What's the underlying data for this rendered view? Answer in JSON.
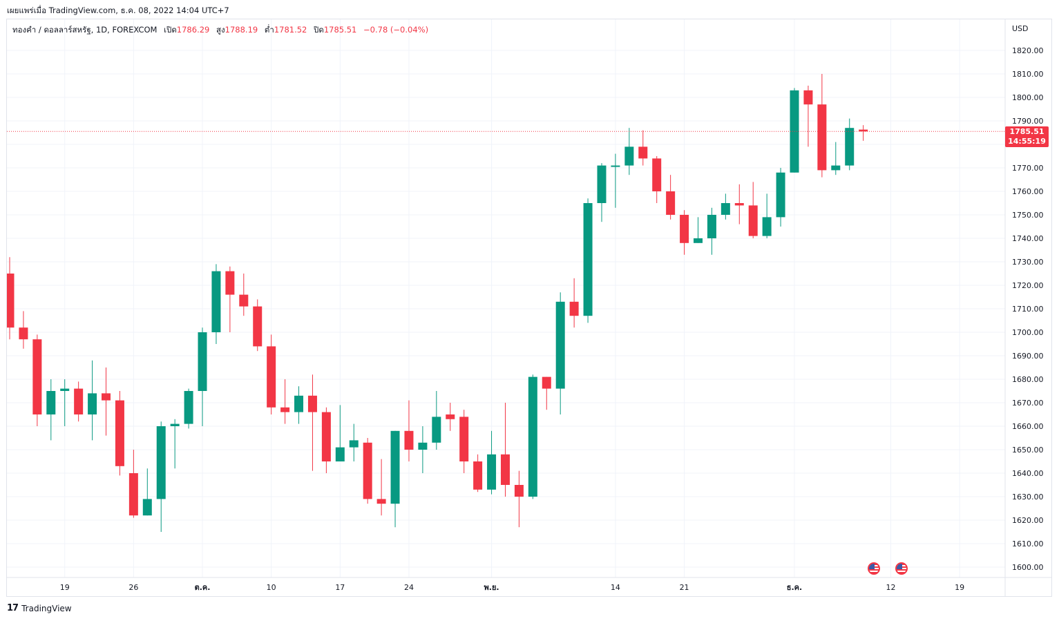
{
  "header": {
    "published": "เผยแพร่เมื่อ TradingView.com, ธ.ค. 08, 2022 14:04 UTC+7"
  },
  "legend": {
    "symbol": "ทองคำ / ดอลลาร์สหรัฐ, 1D, FOREXCOM",
    "open_label": "เปิด",
    "open": "1786.29",
    "high_label": "สูง",
    "high": "1788.19",
    "low_label": "ต่ำ",
    "low": "1781.52",
    "close_label": "ปิด",
    "close": "1785.51",
    "change": "−0.78 (−0.04%)"
  },
  "price_tag": {
    "price": "1785.51",
    "countdown": "14:55:19"
  },
  "footer": {
    "brand": "TradingView",
    "logo": "17"
  },
  "colors": {
    "up": "#089981",
    "down": "#f23645",
    "grid": "#f0f3fa",
    "axis_text": "#131722"
  },
  "icons": [
    "us-flag-event-icon",
    "us-flag-event-icon"
  ],
  "chart_data": {
    "type": "candlestick",
    "currency": "USD",
    "y_ticks": [
      1600,
      1610,
      1620,
      1630,
      1640,
      1650,
      1660,
      1670,
      1680,
      1690,
      1700,
      1710,
      1720,
      1730,
      1740,
      1750,
      1760,
      1770,
      1780,
      1790,
      1800,
      1810,
      1820
    ],
    "y_tick_labels": [
      "1600.00",
      "1610.00",
      "1620.00",
      "1630.00",
      "1640.00",
      "1650.00",
      "1660.00",
      "1670.00",
      "1680.00",
      "1690.00",
      "1700.00",
      "1710.00",
      "1720.00",
      "1730.00",
      "1740.00",
      "1750.00",
      "1760.00",
      "1770.00",
      "1780.00",
      "1790.00",
      "1800.00",
      "1810.00",
      "1820.00"
    ],
    "x_tick_labels": [
      "19",
      "26",
      "ต.ค.",
      "10",
      "17",
      "24",
      "พ.ย.",
      "14",
      "21",
      "ธ.ค.",
      "12",
      "19"
    ],
    "x_tick_dates": [
      "2022-09-19",
      "2022-09-26",
      "2022-10-03",
      "2022-10-10",
      "2022-10-17",
      "2022-10-24",
      "2022-11-01",
      "2022-11-14",
      "2022-11-21",
      "2022-12-01",
      "2022-12-12",
      "2022-12-19"
    ],
    "last_price": 1785.51,
    "candles": [
      {
        "date": "2022-09-13",
        "o": 1725,
        "h": 1732,
        "l": 1697,
        "c": 1702
      },
      {
        "date": "2022-09-14",
        "o": 1702,
        "h": 1709,
        "l": 1693,
        "c": 1697
      },
      {
        "date": "2022-09-15",
        "o": 1697,
        "h": 1699,
        "l": 1660,
        "c": 1665
      },
      {
        "date": "2022-09-16",
        "o": 1665,
        "h": 1680,
        "l": 1654,
        "c": 1675
      },
      {
        "date": "2022-09-19",
        "o": 1675,
        "h": 1680,
        "l": 1660,
        "c": 1676
      },
      {
        "date": "2022-09-20",
        "o": 1676,
        "h": 1679,
        "l": 1662,
        "c": 1665
      },
      {
        "date": "2022-09-21",
        "o": 1665,
        "h": 1688,
        "l": 1654,
        "c": 1674
      },
      {
        "date": "2022-09-22",
        "o": 1674,
        "h": 1685,
        "l": 1656,
        "c": 1671
      },
      {
        "date": "2022-09-23",
        "o": 1671,
        "h": 1675,
        "l": 1639,
        "c": 1643
      },
      {
        "date": "2022-09-26",
        "o": 1640,
        "h": 1650,
        "l": 1621,
        "c": 1622
      },
      {
        "date": "2022-09-27",
        "o": 1622,
        "h": 1642,
        "l": 1622,
        "c": 1629
      },
      {
        "date": "2022-09-28",
        "o": 1629,
        "h": 1662,
        "l": 1615,
        "c": 1660
      },
      {
        "date": "2022-09-29",
        "o": 1660,
        "h": 1663,
        "l": 1642,
        "c": 1661
      },
      {
        "date": "2022-09-30",
        "o": 1661,
        "h": 1676,
        "l": 1659,
        "c": 1675
      },
      {
        "date": "2022-10-03",
        "o": 1675,
        "h": 1702,
        "l": 1660,
        "c": 1700
      },
      {
        "date": "2022-10-04",
        "o": 1700,
        "h": 1729,
        "l": 1695,
        "c": 1726
      },
      {
        "date": "2022-10-05",
        "o": 1726,
        "h": 1728,
        "l": 1700,
        "c": 1716
      },
      {
        "date": "2022-10-06",
        "o": 1716,
        "h": 1725,
        "l": 1707,
        "c": 1711
      },
      {
        "date": "2022-10-07",
        "o": 1711,
        "h": 1714,
        "l": 1692,
        "c": 1694
      },
      {
        "date": "2022-10-10",
        "o": 1694,
        "h": 1699,
        "l": 1665,
        "c": 1668
      },
      {
        "date": "2022-10-11",
        "o": 1668,
        "h": 1680,
        "l": 1661,
        "c": 1666
      },
      {
        "date": "2022-10-12",
        "o": 1666,
        "h": 1677,
        "l": 1661,
        "c": 1673
      },
      {
        "date": "2022-10-13",
        "o": 1673,
        "h": 1682,
        "l": 1641,
        "c": 1666
      },
      {
        "date": "2022-10-14",
        "o": 1666,
        "h": 1668,
        "l": 1640,
        "c": 1645
      },
      {
        "date": "2022-10-17",
        "o": 1645,
        "h": 1669,
        "l": 1645,
        "c": 1651
      },
      {
        "date": "2022-10-18",
        "o": 1651,
        "h": 1661,
        "l": 1645,
        "c": 1654
      },
      {
        "date": "2022-10-19",
        "o": 1653,
        "h": 1655,
        "l": 1627,
        "c": 1629
      },
      {
        "date": "2022-10-20",
        "o": 1629,
        "h": 1646,
        "l": 1622,
        "c": 1627
      },
      {
        "date": "2022-10-21",
        "o": 1627,
        "h": 1658,
        "l": 1617,
        "c": 1658
      },
      {
        "date": "2022-10-24",
        "o": 1658,
        "h": 1671,
        "l": 1645,
        "c": 1650
      },
      {
        "date": "2022-10-25",
        "o": 1650,
        "h": 1660,
        "l": 1640,
        "c": 1653
      },
      {
        "date": "2022-10-26",
        "o": 1653,
        "h": 1675,
        "l": 1650,
        "c": 1664
      },
      {
        "date": "2022-10-27",
        "o": 1665,
        "h": 1670,
        "l": 1658,
        "c": 1663
      },
      {
        "date": "2022-10-28",
        "o": 1664,
        "h": 1667,
        "l": 1640,
        "c": 1645
      },
      {
        "date": "2022-10-31",
        "o": 1645,
        "h": 1648,
        "l": 1632,
        "c": 1633
      },
      {
        "date": "2022-11-01",
        "o": 1633,
        "h": 1658,
        "l": 1631,
        "c": 1648
      },
      {
        "date": "2022-11-02",
        "o": 1648,
        "h": 1670,
        "l": 1630,
        "c": 1635
      },
      {
        "date": "2022-11-03",
        "o": 1635,
        "h": 1641,
        "l": 1617,
        "c": 1630
      },
      {
        "date": "2022-11-04",
        "o": 1630,
        "h": 1682,
        "l": 1629,
        "c": 1681
      },
      {
        "date": "2022-11-07",
        "o": 1681,
        "h": 1681,
        "l": 1667,
        "c": 1676
      },
      {
        "date": "2022-11-08",
        "o": 1676,
        "h": 1717,
        "l": 1665,
        "c": 1713
      },
      {
        "date": "2022-11-09",
        "o": 1713,
        "h": 1723,
        "l": 1702,
        "c": 1707
      },
      {
        "date": "2022-11-10",
        "o": 1707,
        "h": 1757,
        "l": 1704,
        "c": 1755
      },
      {
        "date": "2022-11-11",
        "o": 1755,
        "h": 1772,
        "l": 1747,
        "c": 1771
      },
      {
        "date": "2022-11-14",
        "o": 1771,
        "h": 1776,
        "l": 1753,
        "c": 1771
      },
      {
        "date": "2022-11-15",
        "o": 1771,
        "h": 1787,
        "l": 1767,
        "c": 1779
      },
      {
        "date": "2022-11-16",
        "o": 1779,
        "h": 1786,
        "l": 1771,
        "c": 1774
      },
      {
        "date": "2022-11-17",
        "o": 1774,
        "h": 1775,
        "l": 1755,
        "c": 1760
      },
      {
        "date": "2022-11-18",
        "o": 1760,
        "h": 1767,
        "l": 1748,
        "c": 1750
      },
      {
        "date": "2022-11-21",
        "o": 1750,
        "h": 1752,
        "l": 1733,
        "c": 1738
      },
      {
        "date": "2022-11-22",
        "o": 1738,
        "h": 1749,
        "l": 1738,
        "c": 1740
      },
      {
        "date": "2022-11-23",
        "o": 1740,
        "h": 1753,
        "l": 1733,
        "c": 1750
      },
      {
        "date": "2022-11-24",
        "o": 1750,
        "h": 1759,
        "l": 1748,
        "c": 1755
      },
      {
        "date": "2022-11-25",
        "o": 1755,
        "h": 1763,
        "l": 1746,
        "c": 1754
      },
      {
        "date": "2022-11-28",
        "o": 1754,
        "h": 1764,
        "l": 1740,
        "c": 1741
      },
      {
        "date": "2022-11-29",
        "o": 1741,
        "h": 1759,
        "l": 1740,
        "c": 1749
      },
      {
        "date": "2022-11-30",
        "o": 1749,
        "h": 1770,
        "l": 1745,
        "c": 1768
      },
      {
        "date": "2022-12-01",
        "o": 1768,
        "h": 1804,
        "l": 1768,
        "c": 1803
      },
      {
        "date": "2022-12-02",
        "o": 1803,
        "h": 1805,
        "l": 1779,
        "c": 1797
      },
      {
        "date": "2022-12-05",
        "o": 1797,
        "h": 1810,
        "l": 1766,
        "c": 1769
      },
      {
        "date": "2022-12-06",
        "o": 1769,
        "h": 1781,
        "l": 1767,
        "c": 1771
      },
      {
        "date": "2022-12-07",
        "o": 1771,
        "h": 1791,
        "l": 1769,
        "c": 1787
      },
      {
        "date": "2022-12-08",
        "o": 1786.29,
        "h": 1788.19,
        "l": 1781.52,
        "c": 1785.51
      }
    ]
  }
}
